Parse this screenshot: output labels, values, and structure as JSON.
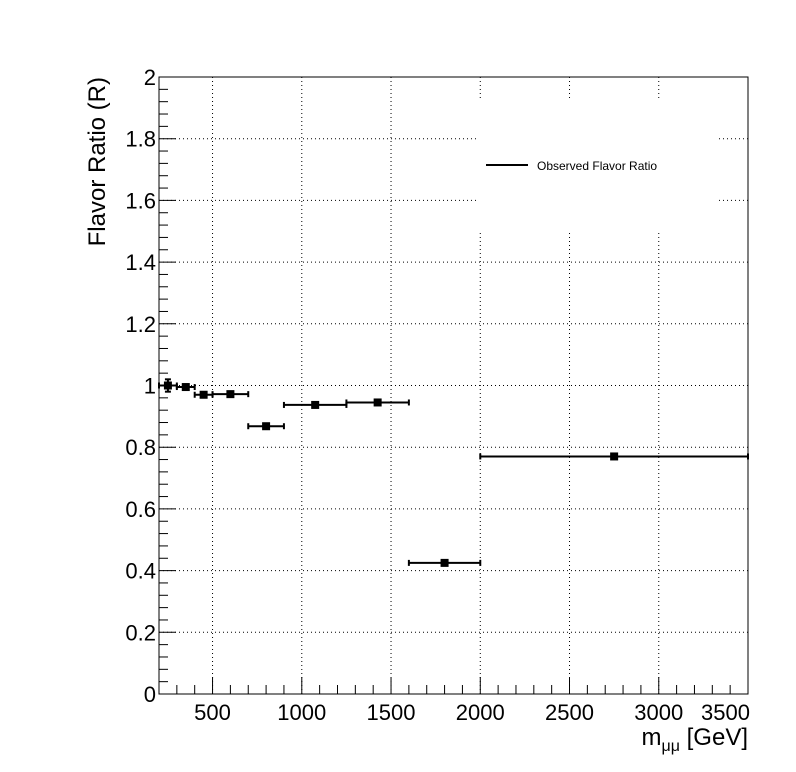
{
  "chart_data": {
    "type": "scatter",
    "title": "",
    "xlabel": "m",
    "xlabel_subscript": "μμ",
    "xlabel_unit": " [GeV]",
    "ylabel": "Flavor Ratio (R)",
    "xlim": [
      200,
      3500
    ],
    "ylim": [
      0,
      2
    ],
    "x_ticks": [
      500,
      1000,
      1500,
      2000,
      2500,
      3000,
      3500
    ],
    "y_ticks": [
      0,
      0.2,
      0.4,
      0.6,
      0.8,
      1,
      1.2,
      1.4,
      1.6,
      1.8,
      2
    ],
    "x_tick_labels": [
      "500",
      "1000",
      "1500",
      "2000",
      "2500",
      "3000",
      "3500"
    ],
    "y_tick_labels": [
      "0",
      "0.2",
      "0.4",
      "0.6",
      "0.8",
      "1",
      "1.2",
      "1.4",
      "1.6",
      "1.8",
      "2"
    ],
    "grid": true,
    "legend": {
      "placement": "top-right",
      "entries": [
        "Observed Flavor Ratio"
      ]
    },
    "series": [
      {
        "name": "Observed Flavor Ratio",
        "color": "#000000",
        "points": [
          {
            "x": 250,
            "xlow": 200,
            "xhigh": 300,
            "y": 1.0,
            "yerr": 0.02
          },
          {
            "x": 350,
            "xlow": 300,
            "xhigh": 400,
            "y": 0.995,
            "yerr": 0.008
          },
          {
            "x": 450,
            "xlow": 400,
            "xhigh": 500,
            "y": 0.97,
            "yerr": 0.006
          },
          {
            "x": 600,
            "xlow": 500,
            "xhigh": 700,
            "y": 0.972,
            "yerr": 0.006
          },
          {
            "x": 800,
            "xlow": 700,
            "xhigh": 900,
            "y": 0.868,
            "yerr": 0.006
          },
          {
            "x": 1075,
            "xlow": 900,
            "xhigh": 1250,
            "y": 0.937,
            "yerr": 0.006
          },
          {
            "x": 1425,
            "xlow": 1250,
            "xhigh": 1600,
            "y": 0.945,
            "yerr": 0.006
          },
          {
            "x": 1800,
            "xlow": 1600,
            "xhigh": 2000,
            "y": 0.425,
            "yerr": 0.006
          },
          {
            "x": 2750,
            "xlow": 2000,
            "xhigh": 3500,
            "y": 0.77,
            "yerr": 0.006
          }
        ]
      }
    ]
  }
}
